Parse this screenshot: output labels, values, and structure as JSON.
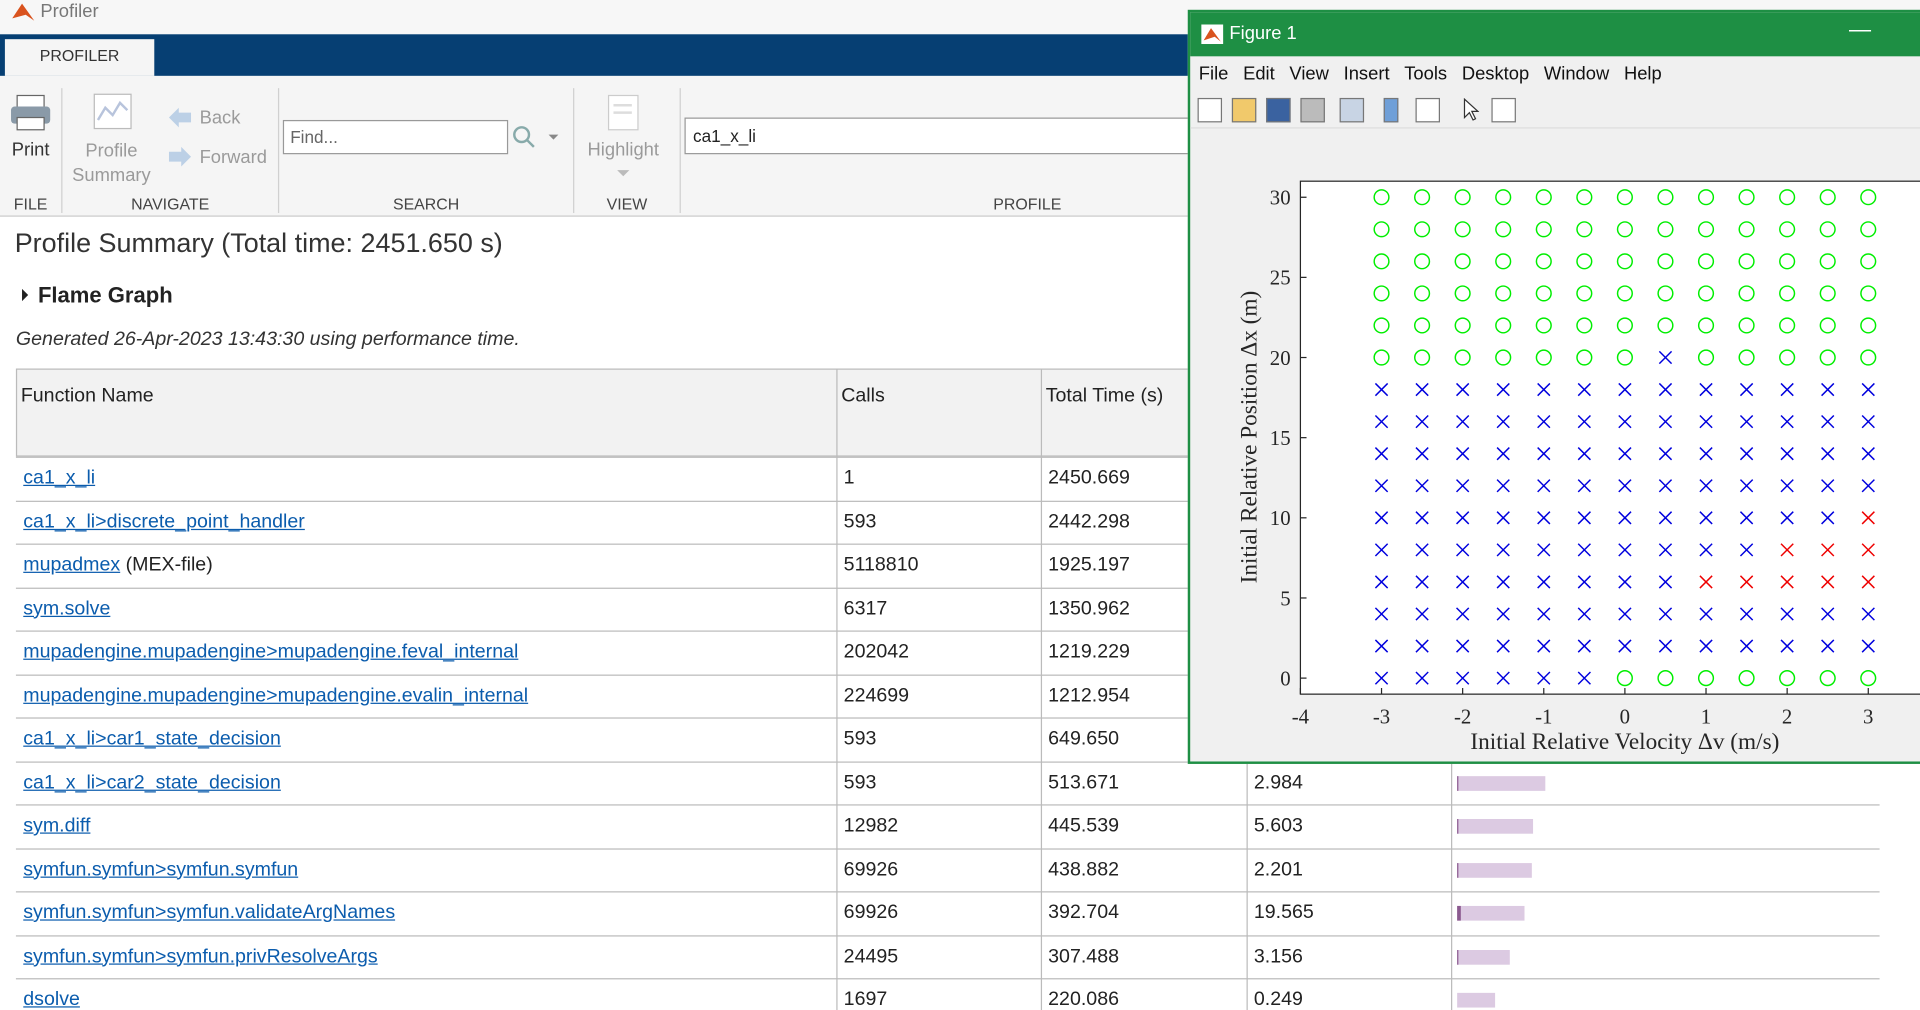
{
  "window": {
    "title": "Profiler",
    "tab": "PROFILER"
  },
  "toolstrip": {
    "print": "Print",
    "file": "FILE",
    "profile_summary": "Profile Summary",
    "back": "Back",
    "forward": "Forward",
    "navigate": "NAVIGATE",
    "find_placeholder": "Find...",
    "search": "SEARCH",
    "highlight": "Highlight",
    "view": "VIEW",
    "profile_input": "ca1_x_li",
    "profile": "PROFILE"
  },
  "summary": {
    "title": "Profile Summary (Total time: 2451.650 s)",
    "flame_graph": "Flame Graph",
    "generated": "Generated 26-Apr-2023 13:43:30 using performance time."
  },
  "table": {
    "headers": [
      "Function Name",
      "Calls",
      "Total Time (s)"
    ],
    "rows": [
      {
        "name": "ca1_x_li",
        "calls": "1",
        "total_time": "2450.669"
      },
      {
        "name": "ca1_x_li>discrete_point_handler",
        "calls": "593",
        "total_time": "2442.298"
      },
      {
        "name": "mupadmex",
        "suffix": "(MEX-file)",
        "calls": "5118810",
        "total_time": "1925.197"
      },
      {
        "name": "sym.solve",
        "calls": "6317",
        "total_time": "1350.962"
      },
      {
        "name": "mupadengine.mupadengine>mupadengine.feval_internal",
        "calls": "202042",
        "total_time": "1219.229"
      },
      {
        "name": "mupadengine.mupadengine>mupadengine.evalin_internal",
        "calls": "224699",
        "total_time": "1212.954"
      },
      {
        "name": "ca1_x_li>car1_state_decision",
        "calls": "593",
        "total_time": "649.650"
      },
      {
        "name": "ca1_x_li>car2_state_decision",
        "calls": "593",
        "total_time": "513.671",
        "self_time": "2.984"
      },
      {
        "name": "sym.diff",
        "calls": "12982",
        "total_time": "445.539",
        "self_time": "5.603"
      },
      {
        "name": "symfun.symfun>symfun.symfun",
        "calls": "69926",
        "total_time": "438.882",
        "self_time": "2.201"
      },
      {
        "name": "symfun.symfun>symfun.validateArgNames",
        "calls": "69926",
        "total_time": "392.704",
        "self_time": "19.565"
      },
      {
        "name": "symfun.symfun>symfun.privResolveArgs",
        "calls": "24495",
        "total_time": "307.488",
        "self_time": "3.156"
      },
      {
        "name": "dsolve",
        "calls": "1697",
        "total_time": "220.086",
        "self_time": "0.249"
      }
    ]
  },
  "figure": {
    "title": "Figure 1",
    "menus": [
      "File",
      "Edit",
      "View",
      "Insert",
      "Tools",
      "Desktop",
      "Window",
      "Help"
    ],
    "plot": {
      "type": "scatter",
      "xlabel": "Initial Relative Velocity Δv (m/s)",
      "ylabel": "Initial Relative Position Δx (m)",
      "xlim": [
        -4,
        4
      ],
      "ylim": [
        -1,
        31
      ],
      "xticks": [
        -4,
        -3,
        -2,
        -1,
        0,
        1,
        2,
        3
      ],
      "yticks": [
        0,
        5,
        10,
        15,
        20,
        25,
        30
      ],
      "series": [
        {
          "marker": "o",
          "color": "#00ee00",
          "x": [
            -3,
            -2.5,
            -2,
            -1.5,
            -1,
            -0.5,
            0,
            0.5,
            1,
            1.5,
            2,
            2.5,
            3,
            -3,
            -2.5,
            -2,
            -1.5,
            -1,
            -0.5,
            0,
            0.5,
            1,
            1.5,
            2,
            2.5,
            3,
            -3,
            -2.5,
            -2,
            -1.5,
            -1,
            -0.5,
            0,
            0.5,
            1,
            1.5,
            2,
            2.5,
            3,
            -3,
            -2.5,
            -2,
            -1.5,
            -1,
            -0.5,
            0,
            0.5,
            1,
            1.5,
            2,
            2.5,
            3,
            -3,
            -2.5,
            -2,
            -1.5,
            -1,
            -0.5,
            0,
            0.5,
            1,
            1.5,
            2,
            2.5,
            3,
            -3,
            -2.5,
            -2,
            -1.5,
            -1,
            -0.5,
            0,
            1,
            1.5,
            2,
            2.5,
            3,
            0,
            0.5,
            1,
            1.5,
            2,
            2.5,
            3
          ],
          "y": [
            30,
            30,
            30,
            30,
            30,
            30,
            30,
            30,
            30,
            30,
            30,
            30,
            30,
            28,
            28,
            28,
            28,
            28,
            28,
            28,
            28,
            28,
            28,
            28,
            28,
            28,
            26,
            26,
            26,
            26,
            26,
            26,
            26,
            26,
            26,
            26,
            26,
            26,
            26,
            24,
            24,
            24,
            24,
            24,
            24,
            24,
            24,
            24,
            24,
            24,
            24,
            24,
            22,
            22,
            22,
            22,
            22,
            22,
            22,
            22,
            22,
            22,
            22,
            22,
            22,
            20,
            20,
            20,
            20,
            20,
            20,
            20,
            20,
            20,
            20,
            20,
            20,
            0,
            0,
            0,
            0,
            0,
            0,
            0
          ]
        },
        {
          "marker": "x",
          "color": "#0000dd",
          "x": [
            0.5,
            -3,
            -2.5,
            -2,
            -1.5,
            -1,
            -0.5,
            0,
            0.5,
            1,
            1.5,
            2,
            2.5,
            3,
            -3,
            -2.5,
            -2,
            -1.5,
            -1,
            -0.5,
            0,
            0.5,
            1,
            1.5,
            2,
            2.5,
            3,
            -3,
            -2.5,
            -2,
            -1.5,
            -1,
            -0.5,
            0,
            0.5,
            1,
            1.5,
            2,
            2.5,
            3,
            -3,
            -2.5,
            -2,
            -1.5,
            -1,
            -0.5,
            0,
            0.5,
            1,
            1.5,
            2,
            2.5,
            3,
            -3,
            -2.5,
            -2,
            -1.5,
            -1,
            -0.5,
            0,
            0.5,
            1,
            1.5,
            2,
            2.5,
            -3,
            -2.5,
            -2,
            -1.5,
            -1,
            -0.5,
            0,
            0.5,
            1,
            1.5,
            -3,
            -2.5,
            -2,
            -1.5,
            -1,
            -0.5,
            0,
            0.5,
            -3,
            -2.5,
            -2,
            -1.5,
            -1,
            -0.5,
            0,
            0.5,
            1,
            1.5,
            2,
            2.5,
            3,
            -3,
            -2.5,
            -2,
            -1.5,
            -1,
            -0.5,
            0,
            0.5,
            1,
            1.5,
            2,
            2.5,
            3,
            -3,
            -2.5,
            -2,
            -1.5,
            -1,
            -0.5
          ],
          "y": [
            20,
            18,
            18,
            18,
            18,
            18,
            18,
            18,
            18,
            18,
            18,
            18,
            18,
            18,
            16,
            16,
            16,
            16,
            16,
            16,
            16,
            16,
            16,
            16,
            16,
            16,
            16,
            14,
            14,
            14,
            14,
            14,
            14,
            14,
            14,
            14,
            14,
            14,
            14,
            14,
            12,
            12,
            12,
            12,
            12,
            12,
            12,
            12,
            12,
            12,
            12,
            12,
            12,
            10,
            10,
            10,
            10,
            10,
            10,
            10,
            10,
            10,
            10,
            10,
            10,
            8,
            8,
            8,
            8,
            8,
            8,
            8,
            8,
            8,
            8,
            6,
            6,
            6,
            6,
            6,
            6,
            6,
            6,
            4,
            4,
            4,
            4,
            4,
            4,
            4,
            4,
            4,
            4,
            4,
            4,
            4,
            2,
            2,
            2,
            2,
            2,
            2,
            2,
            2,
            2,
            2,
            2,
            2,
            2,
            0,
            0,
            0,
            0,
            0,
            0
          ]
        },
        {
          "marker": "x",
          "color": "#ee0000",
          "x": [
            3,
            2,
            2.5,
            3,
            1,
            1.5,
            2,
            2.5,
            3
          ],
          "y": [
            10,
            8,
            8,
            8,
            6,
            6,
            6,
            6,
            6
          ]
        }
      ]
    }
  }
}
